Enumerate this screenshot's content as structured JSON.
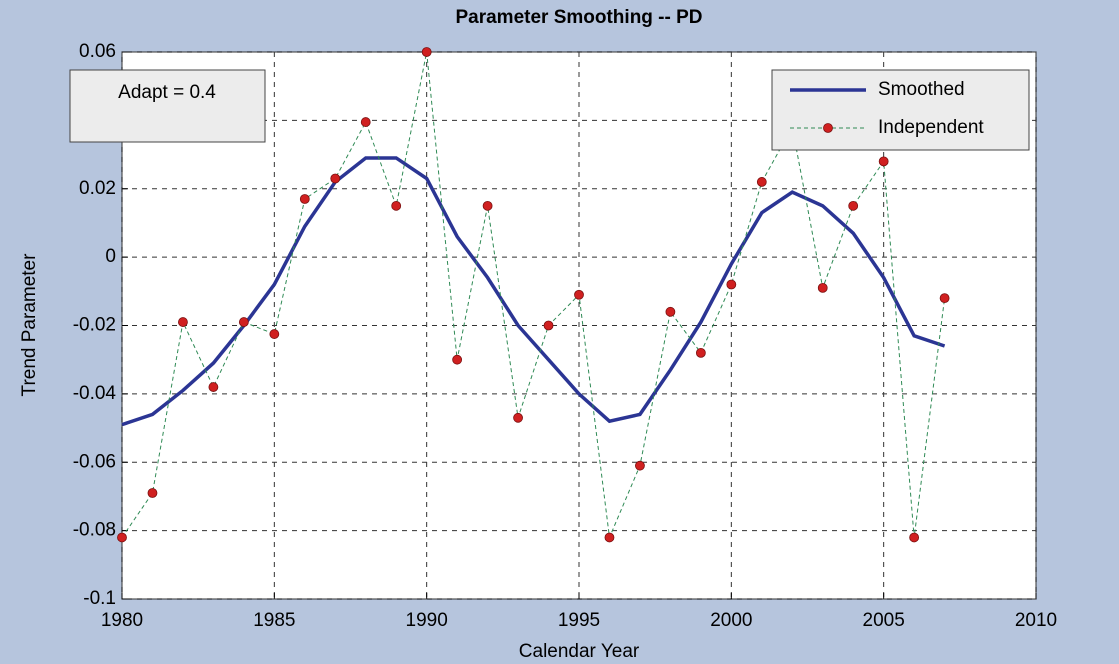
{
  "chart_data": {
    "type": "line",
    "title": "Parameter Smoothing -- PD",
    "xlabel": "Calendar Year",
    "ylabel": "Trend Parameter",
    "annotation": "Adapt = 0.4",
    "x": [
      1980,
      1981,
      1982,
      1983,
      1984,
      1985,
      1986,
      1987,
      1988,
      1989,
      1990,
      1991,
      1992,
      1993,
      1994,
      1995,
      1996,
      1997,
      1998,
      1999,
      2000,
      2001,
      2002,
      2003,
      2004,
      2005,
      2006,
      2007
    ],
    "series": [
      {
        "name": "Smoothed",
        "color": "#2b3594",
        "style": "solid",
        "values": [
          -0.049,
          -0.046,
          -0.039,
          -0.031,
          -0.02,
          -0.008,
          0.009,
          0.022,
          0.029,
          0.029,
          0.023,
          0.006,
          -0.006,
          -0.02,
          -0.03,
          -0.04,
          -0.048,
          -0.046,
          -0.033,
          -0.019,
          -0.002,
          0.013,
          0.019,
          0.015,
          0.007,
          -0.006,
          -0.023,
          -0.026
        ]
      },
      {
        "name": "Independent",
        "color": "#2f8a55",
        "style": "dashed",
        "marker_color": "#d02020",
        "values": [
          -0.082,
          -0.069,
          -0.019,
          -0.038,
          -0.019,
          -0.0225,
          0.017,
          0.023,
          0.0395,
          0.015,
          0.06,
          -0.03,
          0.015,
          -0.047,
          -0.02,
          -0.011,
          -0.082,
          -0.061,
          -0.016,
          -0.028,
          -0.008,
          0.022,
          0.038,
          -0.009,
          0.015,
          0.028,
          -0.082,
          -0.012
        ]
      }
    ],
    "xlim": [
      1980,
      2010
    ],
    "xticks": [
      1980,
      1985,
      1990,
      1995,
      2000,
      2005,
      2010
    ],
    "ylim": [
      -0.1,
      0.06
    ],
    "yticks": [
      -0.1,
      -0.08,
      -0.06,
      -0.04,
      -0.02,
      0,
      0.02,
      0.04,
      0.06
    ],
    "grid": true,
    "legend": "top-right"
  }
}
